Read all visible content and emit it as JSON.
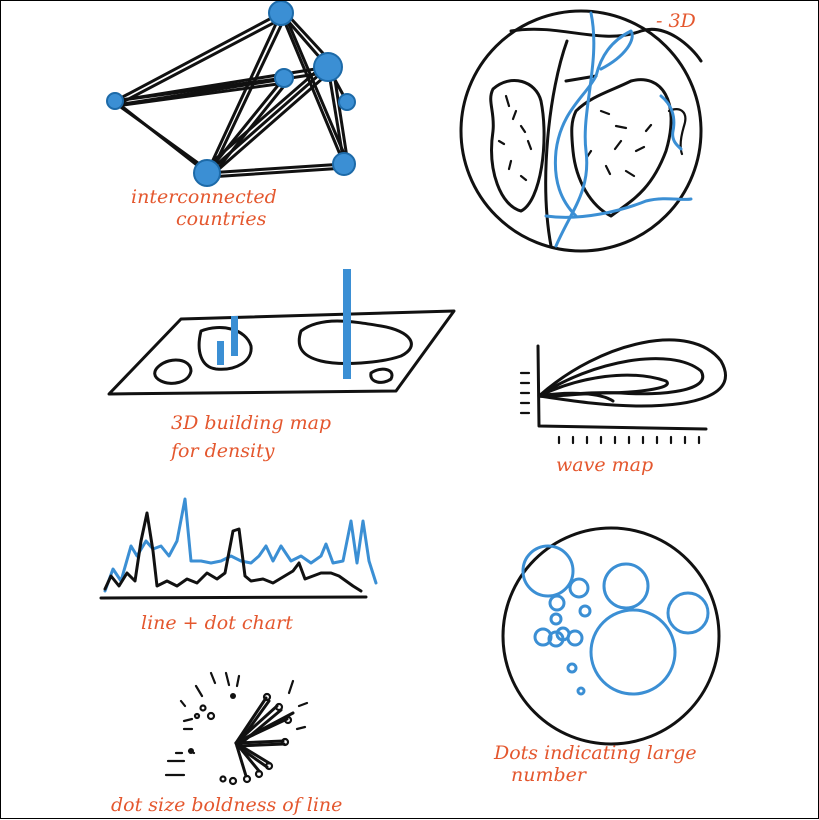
{
  "sketches": [
    {
      "id": "network",
      "caption_lines": [
        "interconnected",
        "countries"
      ]
    },
    {
      "id": "globe-3d",
      "caption_lines": [
        "- 3D"
      ]
    },
    {
      "id": "building-map",
      "caption_lines": [
        "3D building map",
        "for density"
      ]
    },
    {
      "id": "wave-map",
      "caption_lines": [
        "wave    map"
      ]
    },
    {
      "id": "line-dot-chart",
      "caption_lines": [
        "line + dot chart"
      ]
    },
    {
      "id": "dots-circle",
      "caption_lines": [
        "Dots indicating large",
        "number"
      ]
    },
    {
      "id": "dot-size-lines",
      "caption_lines": [
        "dot size  boldness of line"
      ]
    }
  ],
  "colors": {
    "ink": "#111111",
    "accent_blue": "#3b8fd4",
    "caption_orange": "#e4572e"
  }
}
